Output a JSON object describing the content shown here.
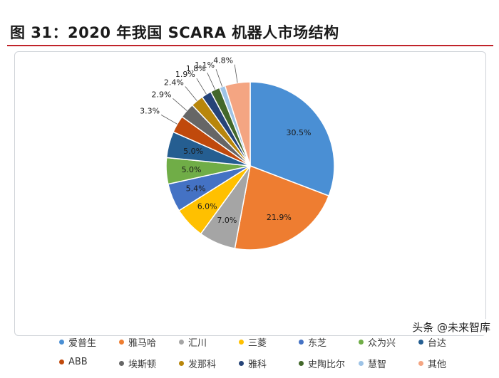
{
  "header": {
    "title": "图 31：2020 年我国 SCARA 机器人市场结构"
  },
  "watermark": {
    "text": "头条 @未来智库"
  },
  "chart_data": {
    "type": "pie",
    "title": "图 31：2020 年我国 SCARA 机器人市场结构",
    "legend_position": "bottom",
    "slices": [
      {
        "name": "爱普生",
        "value": 30.5,
        "label": "30.5%",
        "color": "#4a8fd4"
      },
      {
        "name": "雅马哈",
        "value": 21.9,
        "label": "21.9%",
        "color": "#ee7d31"
      },
      {
        "name": "汇川",
        "value": 7.0,
        "label": "7.0%",
        "color": "#a5a5a5"
      },
      {
        "name": "三菱",
        "value": 6.0,
        "label": "6.0%",
        "color": "#ffc000"
      },
      {
        "name": "东芝",
        "value": 5.4,
        "label": "5.4%",
        "color": "#4472c4"
      },
      {
        "name": "众为兴",
        "value": 5.0,
        "label": "5.0%",
        "color": "#70ad47"
      },
      {
        "name": "台达",
        "value": 5.0,
        "label": "5.0%",
        "color": "#255e91"
      },
      {
        "name": "ABB",
        "value": 3.3,
        "label": "3.3%",
        "color": "#c0490c"
      },
      {
        "name": "埃斯顿",
        "value": 2.9,
        "label": "2.9%",
        "color": "#666666"
      },
      {
        "name": "发那科",
        "value": 2.4,
        "label": "2.4%",
        "color": "#b8860b"
      },
      {
        "name": "雅科",
        "value": 1.9,
        "label": "1.9%",
        "color": "#264478"
      },
      {
        "name": "史陶比尔",
        "value": 1.8,
        "label": "1.8%",
        "color": "#43682b"
      },
      {
        "name": "慧智",
        "value": 1.1,
        "label": "1.1%",
        "color": "#9dc3e6"
      },
      {
        "name": "其他",
        "value": 4.8,
        "label": "4.8%",
        "color": "#f4a582"
      }
    ]
  }
}
